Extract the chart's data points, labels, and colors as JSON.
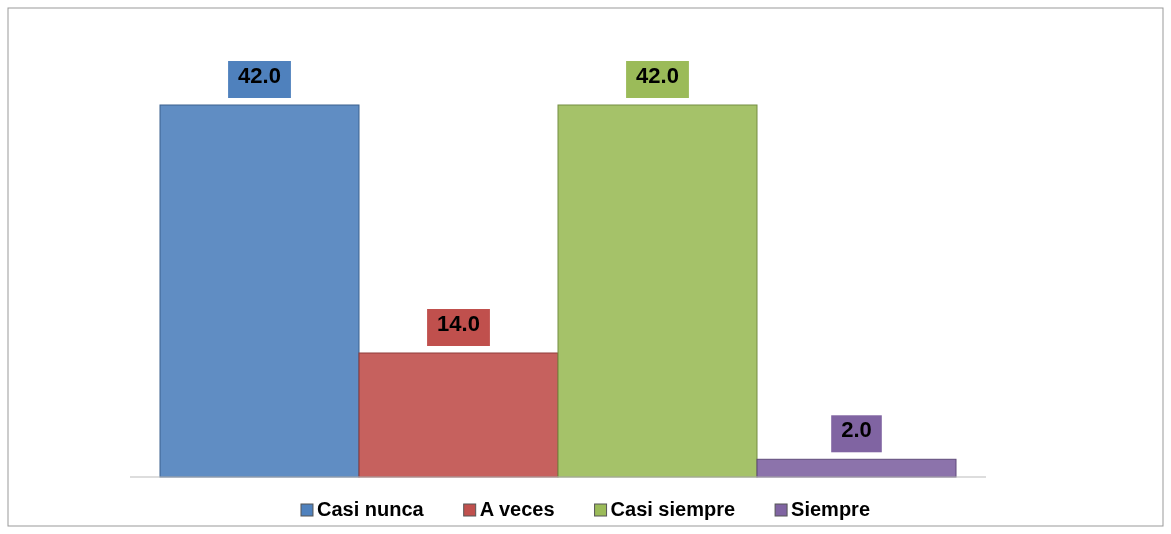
{
  "chart_data": {
    "type": "bar",
    "categories": [
      null
    ],
    "series": [
      {
        "name": "Casi nunca",
        "color": "#4f81bd",
        "values": [
          42.0
        ],
        "value_labels": [
          "42.0"
        ]
      },
      {
        "name": "A veces",
        "color": "#c0504d",
        "values": [
          14.0
        ],
        "value_labels": [
          "14.0"
        ]
      },
      {
        "name": "Casi siempre",
        "color": "#9bbb59",
        "values": [
          42.0
        ],
        "value_labels": [
          "42.0"
        ]
      },
      {
        "name": "Siempre",
        "color": "#8064a2",
        "values": [
          2.0
        ],
        "value_labels": [
          "2.0"
        ]
      }
    ],
    "legend": "bottom"
  }
}
